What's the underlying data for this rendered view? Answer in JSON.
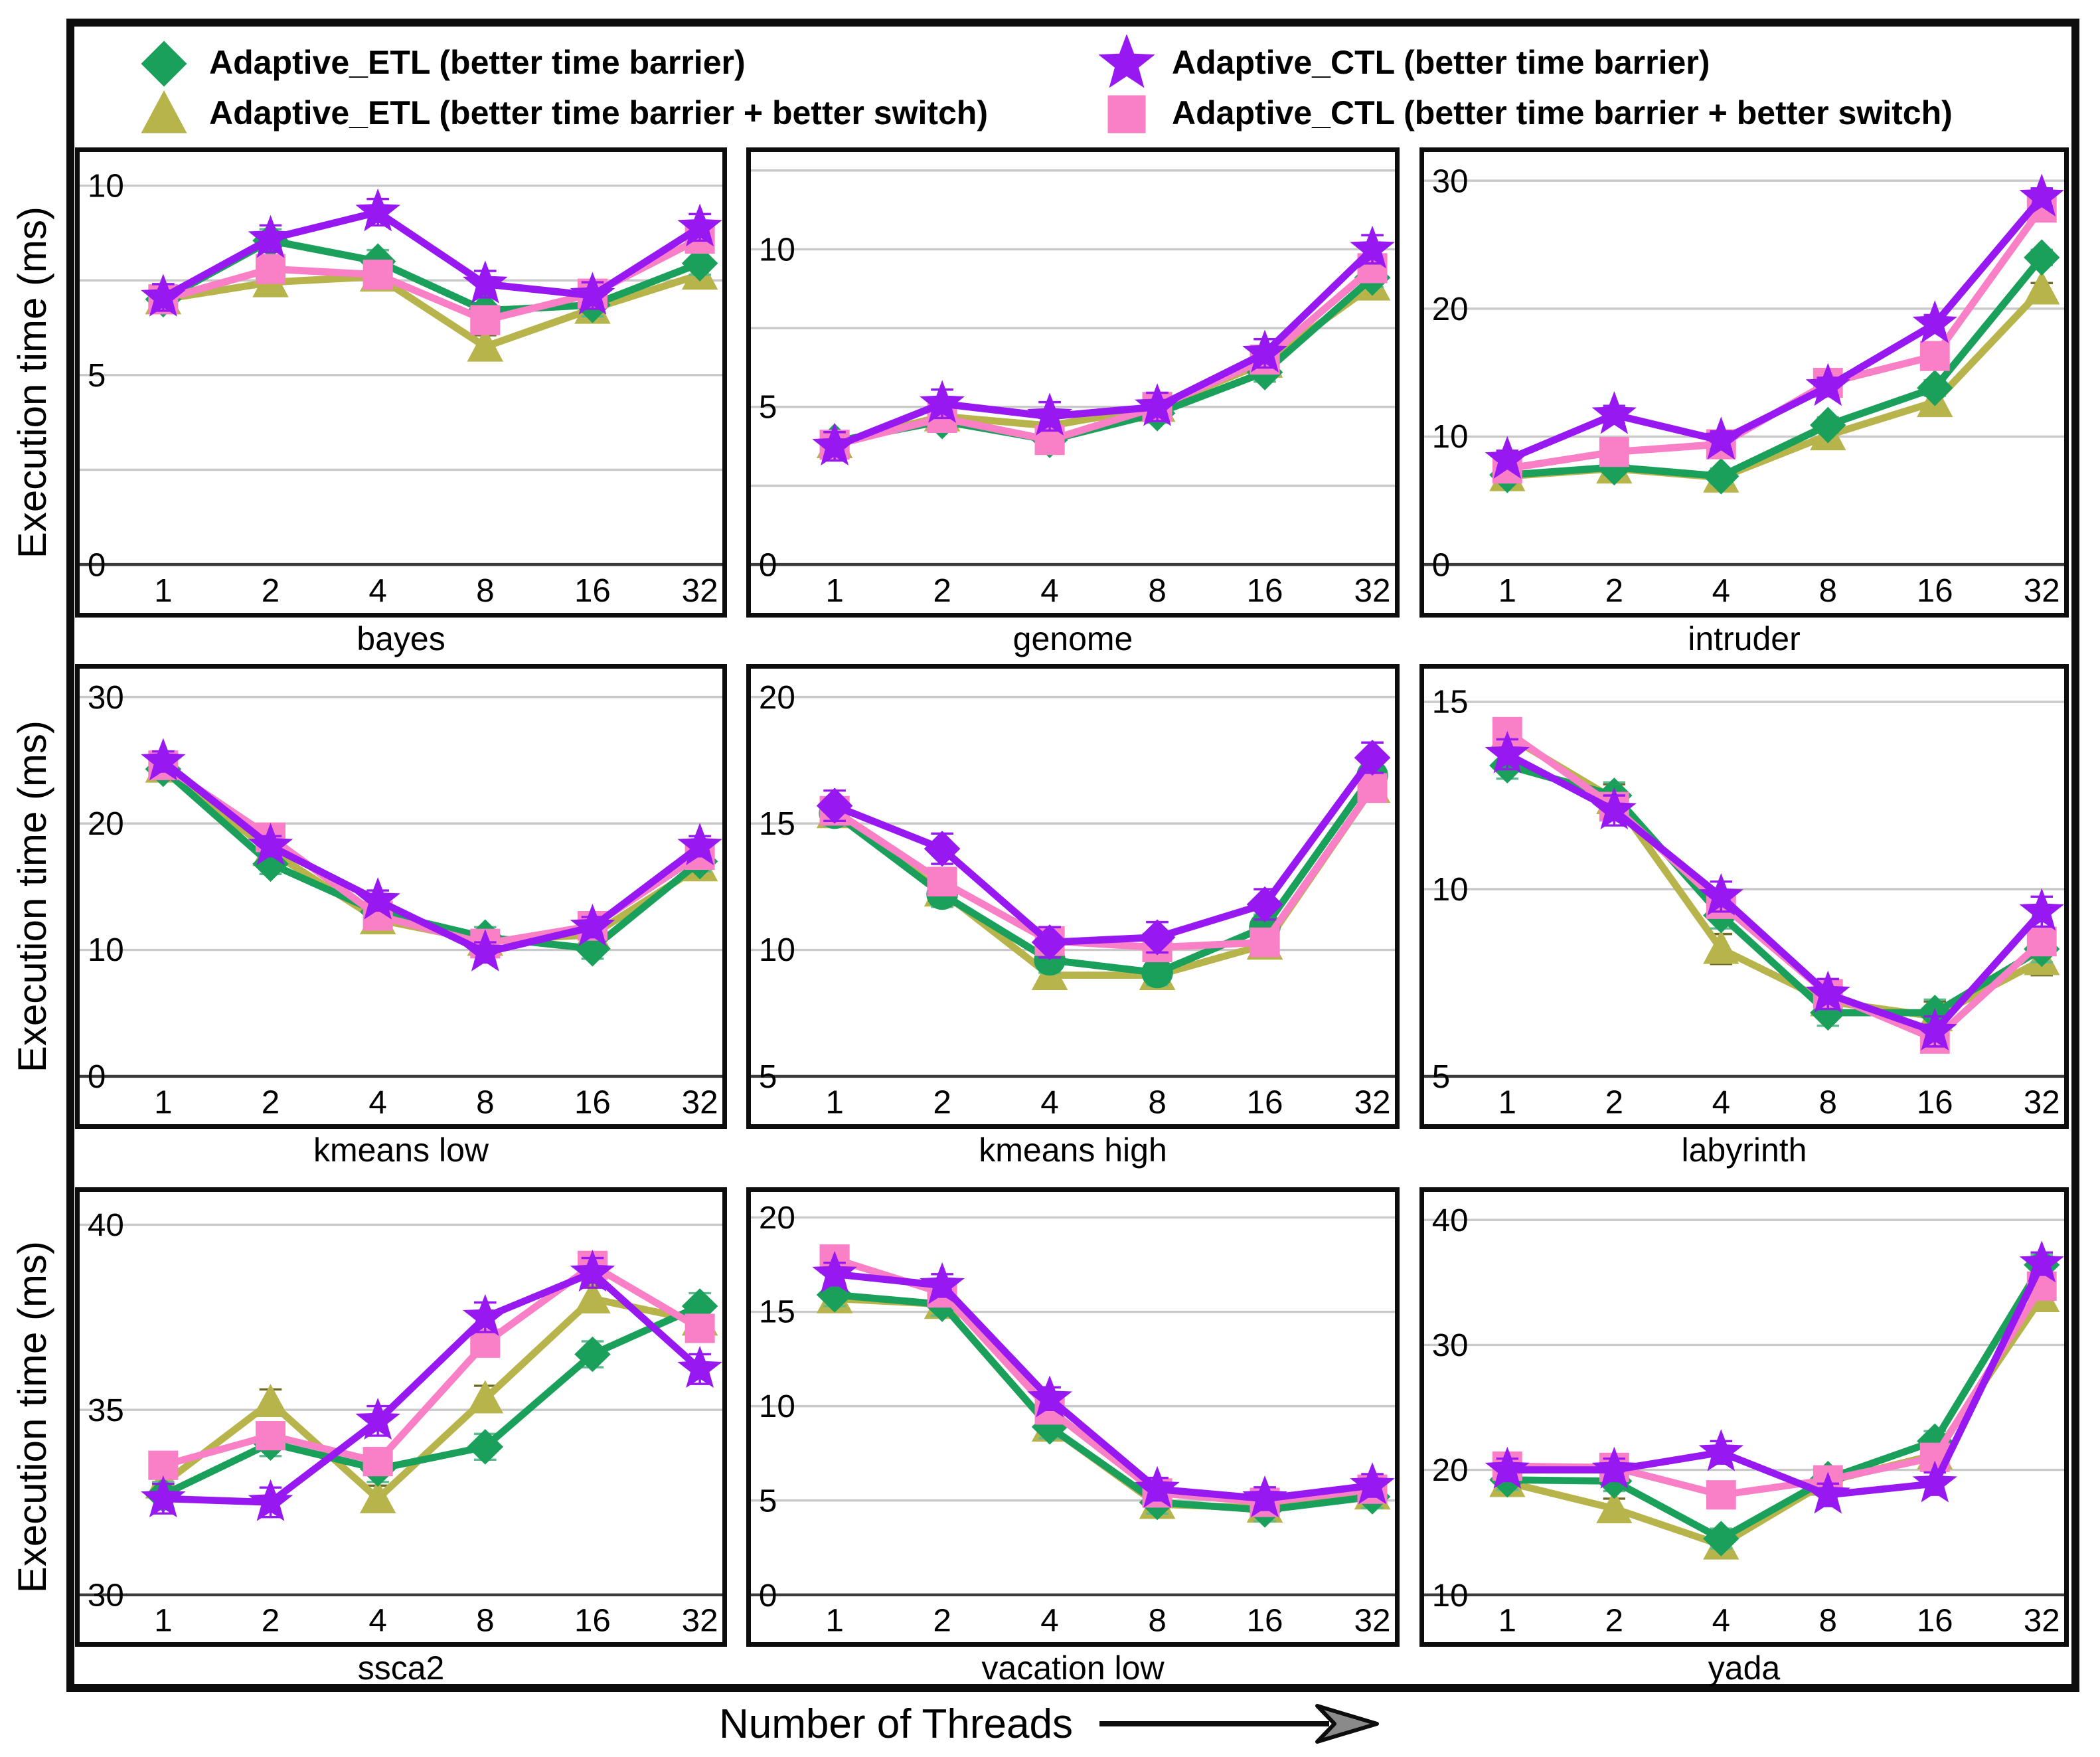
{
  "figure": {
    "ylabel": "Execution time (ms)",
    "xlabel": "Number of Threads"
  },
  "series_styles": {
    "etl": {
      "name": "Adaptive_ETL (better time barrier)",
      "marker": "diamond",
      "color": "#1aa05a",
      "err_color": "#5fbb8e"
    },
    "etl_switch": {
      "name": "Adaptive_ETL (better time barrier + better switch)",
      "marker": "triangle",
      "color": "#b8b44c",
      "err_color": "#6f6b25"
    },
    "ctl": {
      "name": "Adaptive_CTL (better time barrier)",
      "marker": "star",
      "color": "#9718f0",
      "err_color": "#c globally"
    },
    "ctl_switch": {
      "name": "Adaptive_CTL (better time barrier + better switch)",
      "marker": "square",
      "color": "#f97fc6",
      "err_color": "#a34e68"
    }
  },
  "chart_data": [
    {
      "type": "line",
      "title": "bayes",
      "categories": [
        "1",
        "2",
        "4",
        "8",
        "16",
        "32"
      ],
      "xlabel_implicit": "Number of Threads",
      "ylabel_implicit": "Execution time (ms)",
      "ylim": [
        0,
        10.4
      ],
      "grid_step": 2.5,
      "yticks": [
        0,
        5,
        10
      ],
      "grid": true,
      "series": [
        {
          "style": "etl_switch",
          "values": [
            7.0,
            7.45,
            7.6,
            5.75,
            6.75,
            7.65
          ],
          "err": 0.3
        },
        {
          "style": "etl",
          "values": [
            7.0,
            8.55,
            8.0,
            6.7,
            6.85,
            7.95
          ],
          "err": 0.3
        },
        {
          "style": "ctl_switch",
          "values": [
            7.0,
            7.8,
            7.65,
            6.45,
            7.15,
            8.6
          ],
          "err": 0.3
        },
        {
          "style": "ctl",
          "values": [
            7.05,
            8.6,
            9.3,
            7.4,
            7.1,
            8.9
          ],
          "err": 0.35
        }
      ]
    },
    {
      "type": "line",
      "title": "genome",
      "categories": [
        "1",
        "2",
        "4",
        "8",
        "16",
        "32"
      ],
      "ylim": [
        0,
        12.5
      ],
      "grid_step": 2.5,
      "yticks": [
        0,
        5,
        10
      ],
      "grid": true,
      "series": [
        {
          "style": "etl_switch",
          "values": [
            3.85,
            4.7,
            4.4,
            5.0,
            6.4,
            8.85
          ],
          "err": 0.25
        },
        {
          "style": "etl",
          "values": [
            3.9,
            4.55,
            3.95,
            4.8,
            6.1,
            9.1
          ],
          "err": 0.3
        },
        {
          "style": "ctl_switch",
          "values": [
            3.8,
            4.65,
            3.95,
            5.0,
            6.5,
            9.4
          ],
          "err": 0.3
        },
        {
          "style": "ctl",
          "values": [
            3.75,
            5.1,
            4.7,
            5.0,
            6.7,
            10.0
          ],
          "err": 0.45
        }
      ]
    },
    {
      "type": "line",
      "title": "intruder",
      "categories": [
        "1",
        "2",
        "4",
        "8",
        "16",
        "32"
      ],
      "ylim": [
        0,
        30.8
      ],
      "grid_step": 10,
      "yticks": [
        0,
        10,
        20,
        30
      ],
      "grid": true,
      "series": [
        {
          "style": "etl_switch",
          "values": [
            6.9,
            7.5,
            6.8,
            10.1,
            12.7,
            21.5
          ],
          "err": 0.5
        },
        {
          "style": "etl",
          "values": [
            7.0,
            7.6,
            6.9,
            10.9,
            13.8,
            24.0
          ],
          "err": 0.6
        },
        {
          "style": "ctl_switch",
          "values": [
            7.5,
            8.8,
            9.4,
            14.2,
            16.3,
            27.9
          ],
          "err": 0.6
        },
        {
          "style": "ctl",
          "values": [
            8.2,
            11.7,
            9.7,
            13.9,
            18.8,
            28.7
          ],
          "err": 0.7
        }
      ]
    },
    {
      "type": "line",
      "title": "kmeans low",
      "categories": [
        "1",
        "2",
        "4",
        "8",
        "16",
        "32"
      ],
      "ylim": [
        0,
        30.8
      ],
      "grid_step": 10,
      "yticks": [
        0,
        10,
        20,
        30
      ],
      "grid": true,
      "series": [
        {
          "style": "etl_switch",
          "values": [
            24.4,
            17.8,
            12.4,
            10.7,
            11.2,
            16.6
          ],
          "err": 0.7
        },
        {
          "style": "etl",
          "values": [
            24.3,
            16.8,
            13.0,
            11.0,
            10.1,
            17.0
          ],
          "err": 0.8
        },
        {
          "style": "ctl_switch",
          "values": [
            24.6,
            18.9,
            12.7,
            10.5,
            11.9,
            17.5
          ],
          "err": 0.8
        },
        {
          "style": "ctl",
          "values": [
            24.9,
            18.2,
            13.9,
            9.8,
            11.8,
            18.2
          ],
          "err": 0.8
        }
      ]
    },
    {
      "type": "line",
      "title": "kmeans high",
      "categories": [
        "1",
        "2",
        "4",
        "8",
        "16",
        "32"
      ],
      "ylim": [
        5,
        20.4
      ],
      "grid_step": 5,
      "yticks": [
        5,
        10,
        15,
        20
      ],
      "grid": true,
      "series": [
        {
          "style": "etl_switch",
          "values": [
            15.4,
            12.3,
            9.0,
            9.0,
            10.2,
            16.4
          ],
          "err": 0.5
        },
        {
          "style": "etl",
          "values": [
            15.4,
            12.2,
            9.6,
            9.1,
            10.9,
            16.9
          ],
          "err": 0.5,
          "marker": "circle"
        },
        {
          "style": "ctl_switch",
          "values": [
            15.5,
            12.7,
            10.35,
            10.1,
            10.3,
            16.4
          ],
          "err": 0.5
        },
        {
          "style": "ctl",
          "values": [
            15.7,
            14.0,
            10.3,
            10.5,
            11.8,
            17.6
          ],
          "err": 0.6,
          "marker": "diamond"
        }
      ]
    },
    {
      "type": "line",
      "title": "labyrinth",
      "categories": [
        "1",
        "2",
        "4",
        "8",
        "16",
        "32"
      ],
      "ylim": [
        5,
        15.4
      ],
      "grid_step": 5,
      "yticks": [
        5,
        10,
        15
      ],
      "grid": true,
      "series": [
        {
          "style": "etl_switch",
          "values": [
            14.1,
            12.4,
            8.4,
            7.0,
            6.6,
            8.1
          ],
          "err": 0.4
        },
        {
          "style": "etl",
          "values": [
            13.3,
            12.5,
            9.3,
            6.7,
            6.7,
            8.4
          ],
          "err": 0.35
        },
        {
          "style": "ctl_switch",
          "values": [
            14.2,
            12.2,
            9.6,
            7.2,
            6.0,
            8.6
          ],
          "err": 0.35
        },
        {
          "style": "ctl",
          "values": [
            13.6,
            12.1,
            9.8,
            7.2,
            6.2,
            9.4
          ],
          "err": 0.4
        }
      ]
    },
    {
      "type": "line",
      "title": "ssca2",
      "categories": [
        "1",
        "2",
        "4",
        "8",
        "16",
        "32"
      ],
      "ylim": [
        30,
        40.4
      ],
      "grid_step": 5,
      "yticks": [
        30,
        35,
        40
      ],
      "grid": true,
      "series": [
        {
          "style": "etl_switch",
          "values": [
            33.0,
            35.2,
            32.6,
            35.3,
            38.0,
            37.4
          ],
          "err": 0.35
        },
        {
          "style": "etl",
          "values": [
            32.7,
            34.1,
            33.4,
            34.0,
            36.5,
            37.8
          ],
          "err": 0.35
        },
        {
          "style": "ctl_switch",
          "values": [
            33.5,
            34.3,
            33.6,
            36.8,
            38.9,
            37.2
          ],
          "err": 0.35
        },
        {
          "style": "ctl",
          "values": [
            32.6,
            32.5,
            34.7,
            37.5,
            38.7,
            36.1
          ],
          "err": 0.4
        }
      ]
    },
    {
      "type": "line",
      "title": "vacation low",
      "categories": [
        "1",
        "2",
        "4",
        "8",
        "16",
        "32"
      ],
      "ylim": [
        0,
        20.4
      ],
      "grid_step": 5,
      "yticks": [
        0,
        5,
        10,
        15,
        20
      ],
      "grid": true,
      "series": [
        {
          "style": "etl_switch",
          "values": [
            15.7,
            15.4,
            8.9,
            4.8,
            4.6,
            5.3
          ],
          "err": 0.6
        },
        {
          "style": "etl",
          "values": [
            15.9,
            15.4,
            8.9,
            4.9,
            4.5,
            5.2
          ],
          "err": 0.6
        },
        {
          "style": "ctl_switch",
          "values": [
            17.8,
            16.0,
            9.8,
            5.4,
            4.9,
            5.6
          ],
          "err": 0.7
        },
        {
          "style": "ctl",
          "values": [
            17.0,
            16.4,
            10.4,
            5.6,
            5.1,
            5.8
          ],
          "err": 0.6
        }
      ]
    },
    {
      "type": "line",
      "title": "yada",
      "categories": [
        "1",
        "2",
        "4",
        "8",
        "16",
        "32"
      ],
      "ylim": [
        10,
        40.8
      ],
      "grid_step": 10,
      "yticks": [
        10,
        20,
        30,
        40
      ],
      "grid": true,
      "series": [
        {
          "style": "etl_switch",
          "values": [
            19.0,
            16.9,
            14.0,
            19.1,
            21.2,
            33.8
          ],
          "err": 0.8
        },
        {
          "style": "etl",
          "values": [
            19.2,
            19.1,
            14.5,
            19.3,
            22.3,
            36.4
          ],
          "err": 0.8
        },
        {
          "style": "ctl_switch",
          "values": [
            20.3,
            20.2,
            18.0,
            19.2,
            21.0,
            34.7
          ],
          "err": 0.8
        },
        {
          "style": "ctl",
          "values": [
            20.0,
            20.0,
            21.4,
            18.0,
            18.9,
            36.5
          ],
          "err": 0.9
        }
      ]
    }
  ]
}
